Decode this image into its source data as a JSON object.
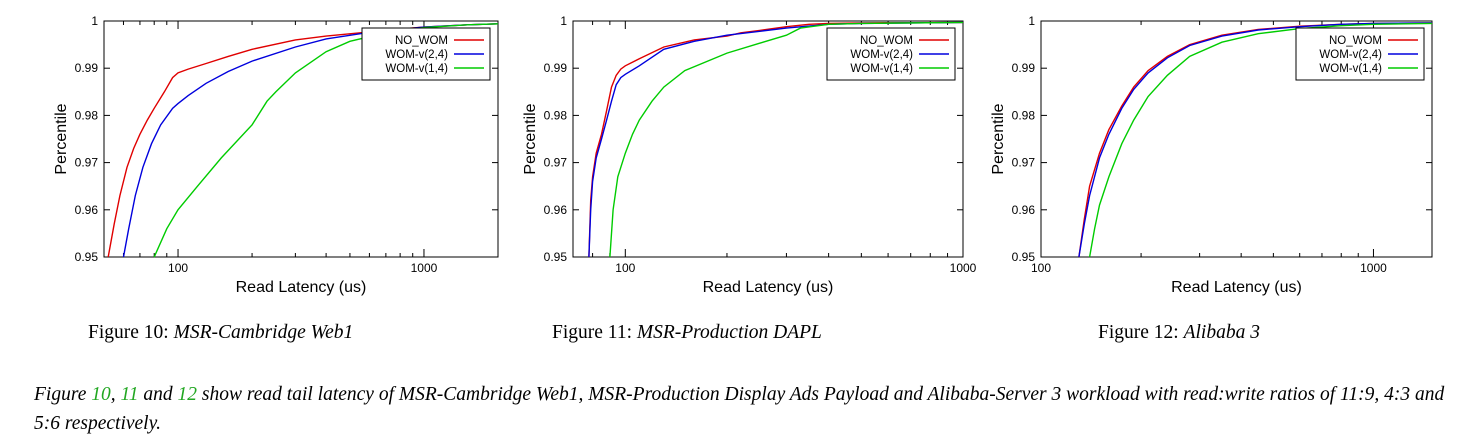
{
  "chart_data": [
    {
      "type": "line",
      "xscale": "log",
      "xlim": [
        50,
        2000
      ],
      "ylim": [
        0.95,
        1
      ],
      "xticks": [
        100,
        1000
      ],
      "xticklabels": [
        "100",
        "1000"
      ],
      "yticks": [
        0.95,
        0.96,
        0.97,
        0.98,
        0.99,
        1
      ],
      "yticklabels": [
        "0.95",
        "0.96",
        "0.97",
        "0.98",
        "0.99",
        "1"
      ],
      "xlabel": "Read Latency (us)",
      "ylabel": "Percentile",
      "legend": "top-right",
      "series": [
        {
          "name": "NO_WOM",
          "color": "#e00000",
          "x": [
            52,
            55,
            58,
            62,
            66,
            70,
            75,
            80,
            88,
            95,
            100,
            110,
            130,
            160,
            200,
            300,
            400,
            600,
            800,
            1000,
            1500,
            2000
          ],
          "y": [
            0.95,
            0.957,
            0.963,
            0.969,
            0.973,
            0.976,
            0.979,
            0.9815,
            0.985,
            0.988,
            0.989,
            0.9898,
            0.991,
            0.9925,
            0.994,
            0.996,
            0.9968,
            0.9977,
            0.9983,
            0.9987,
            0.9992,
            0.9994
          ]
        },
        {
          "name": "WOM-v(2,4)",
          "color": "#0000dd",
          "x": [
            60,
            63,
            67,
            72,
            78,
            85,
            95,
            100,
            110,
            130,
            160,
            200,
            300,
            400,
            600,
            1000,
            1500,
            2000
          ],
          "y": [
            0.95,
            0.956,
            0.963,
            0.969,
            0.974,
            0.978,
            0.9815,
            0.9825,
            0.9842,
            0.9868,
            0.9893,
            0.9915,
            0.9945,
            0.9962,
            0.9976,
            0.9987,
            0.9992,
            0.9994
          ]
        },
        {
          "name": "WOM-v(1,4)",
          "color": "#00cc00",
          "x": [
            80,
            90,
            100,
            120,
            150,
            200,
            230,
            250,
            300,
            400,
            500,
            700,
            1000,
            1500,
            2000
          ],
          "y": [
            0.95,
            0.956,
            0.96,
            0.965,
            0.971,
            0.978,
            0.983,
            0.985,
            0.989,
            0.9935,
            0.9957,
            0.9975,
            0.9986,
            0.9992,
            0.9994
          ]
        }
      ]
    },
    {
      "type": "line",
      "xscale": "log",
      "xlim": [
        70,
        1000
      ],
      "ylim": [
        0.95,
        1
      ],
      "xticks": [
        100,
        1000
      ],
      "xticklabels": [
        "100",
        "1000"
      ],
      "yticks": [
        0.95,
        0.96,
        0.97,
        0.98,
        0.99,
        1
      ],
      "yticklabels": [
        "0.95",
        "0.96",
        "0.97",
        "0.98",
        "0.99",
        "1"
      ],
      "xlabel": "Read Latency (us)",
      "ylabel": "Percentile",
      "legend": "top-right",
      "series": [
        {
          "name": "NO_WOM",
          "color": "#e00000",
          "x": [
            78,
            79,
            80,
            82,
            85,
            88,
            91,
            94,
            97,
            100,
            110,
            130,
            160,
            200,
            220,
            250,
            300,
            350,
            400,
            500,
            1000
          ],
          "y": [
            0.95,
            0.962,
            0.967,
            0.972,
            0.976,
            0.981,
            0.986,
            0.9885,
            0.9898,
            0.9905,
            0.992,
            0.9945,
            0.996,
            0.9968,
            0.9975,
            0.998,
            0.9988,
            0.9993,
            0.9995,
            0.9996,
            0.9997
          ]
        },
        {
          "name": "WOM-v(2,4)",
          "color": "#0000dd",
          "x": [
            78,
            79,
            80,
            82,
            85,
            88,
            91,
            94,
            97,
            100,
            110,
            130,
            160,
            200,
            300,
            400,
            500,
            1000
          ],
          "y": [
            0.95,
            0.96,
            0.966,
            0.971,
            0.975,
            0.979,
            0.983,
            0.9865,
            0.988,
            0.9887,
            0.9905,
            0.994,
            0.9957,
            0.997,
            0.9985,
            0.9993,
            0.9995,
            0.9997
          ]
        },
        {
          "name": "WOM-v(1,4)",
          "color": "#00cc00",
          "x": [
            90,
            92,
            95,
            100,
            105,
            110,
            120,
            130,
            150,
            200,
            250,
            300,
            330,
            400,
            500,
            1000
          ],
          "y": [
            0.95,
            0.96,
            0.967,
            0.972,
            0.976,
            0.979,
            0.983,
            0.986,
            0.9895,
            0.9932,
            0.9953,
            0.997,
            0.9985,
            0.9993,
            0.9995,
            0.9997
          ]
        }
      ]
    },
    {
      "type": "line",
      "xscale": "log",
      "xlim": [
        100,
        1500
      ],
      "ylim": [
        0.95,
        1
      ],
      "xticks": [
        100,
        1000
      ],
      "xticklabels": [
        "100",
        "1000"
      ],
      "yticks": [
        0.95,
        0.96,
        0.97,
        0.98,
        0.99,
        1
      ],
      "yticklabels": [
        "0.95",
        "0.96",
        "0.97",
        "0.98",
        "0.99",
        "1"
      ],
      "xlabel": "Read Latency (us)",
      "ylabel": "Percentile",
      "legend": "top-right",
      "series": [
        {
          "name": "NO_WOM",
          "color": "#e00000",
          "x": [
            130,
            135,
            140,
            150,
            160,
            175,
            190,
            210,
            240,
            280,
            350,
            450,
            600,
            800,
            1000,
            1500
          ],
          "y": [
            0.95,
            0.958,
            0.965,
            0.972,
            0.977,
            0.982,
            0.986,
            0.9895,
            0.9925,
            0.995,
            0.997,
            0.9982,
            0.9989,
            0.9993,
            0.9995,
            0.9996
          ]
        },
        {
          "name": "WOM-v(2,4)",
          "color": "#0000dd",
          "x": [
            130,
            135,
            140,
            150,
            160,
            175,
            190,
            210,
            240,
            280,
            350,
            450,
            600,
            800,
            1000,
            1500
          ],
          "y": [
            0.95,
            0.957,
            0.963,
            0.971,
            0.976,
            0.9815,
            0.9855,
            0.989,
            0.9922,
            0.9948,
            0.9968,
            0.9981,
            0.9988,
            0.9993,
            0.9995,
            0.9996
          ]
        },
        {
          "name": "WOM-v(1,4)",
          "color": "#00cc00",
          "x": [
            140,
            145,
            150,
            160,
            175,
            190,
            210,
            240,
            280,
            350,
            450,
            600,
            800,
            1000,
            1500
          ],
          "y": [
            0.95,
            0.956,
            0.961,
            0.967,
            0.974,
            0.979,
            0.984,
            0.9885,
            0.9925,
            0.9955,
            0.9973,
            0.9984,
            0.999,
            0.9993,
            0.9995
          ]
        }
      ]
    }
  ],
  "captions": {
    "fig10_prefix": "Figure 10: ",
    "fig10_title": "MSR-Cambridge Web1",
    "fig11_prefix": "Figure 11: ",
    "fig11_title": "MSR-Production DAPL",
    "fig12_prefix": "Figure 12: ",
    "fig12_title": "Alibaba 3"
  },
  "body_text": {
    "word_figure": "Figure ",
    "ref1": "10",
    "sep1": ", ",
    "ref2": "11",
    "sep2": " and ",
    "ref3": "12",
    "rest": " show read tail latency of MSR-Cambridge Web1, MSR-Production Display Ads Payload and Alibaba-Server 3 workload with read:write ratios of 11:9, 4:3 and 5:6 respectively."
  }
}
